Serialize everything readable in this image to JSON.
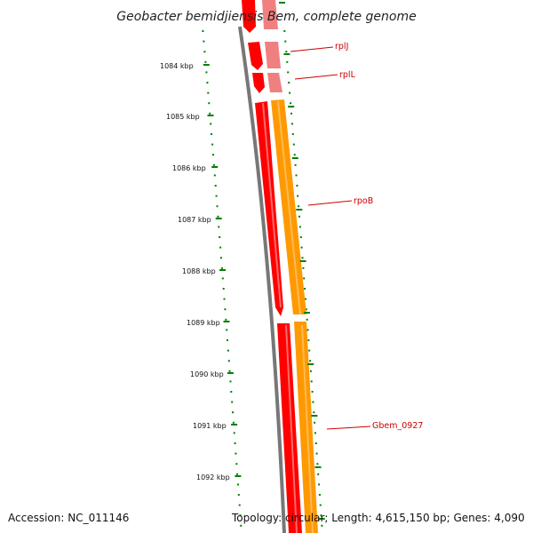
{
  "title": "Geobacter bemidjiensis Bem, complete genome",
  "ticks": [
    {
      "label": "1084 kbp"
    },
    {
      "label": "1085 kbp"
    },
    {
      "label": "1086 kbp"
    },
    {
      "label": "1087 kbp"
    },
    {
      "label": "1088 kbp"
    },
    {
      "label": "1089 kbp"
    },
    {
      "label": "1090 kbp"
    },
    {
      "label": "1091 kbp"
    },
    {
      "label": "1092 kbp"
    }
  ],
  "genes": [
    {
      "name": "rplJ"
    },
    {
      "name": "rplL"
    },
    {
      "name": "rpoB"
    },
    {
      "name": "Gbem_0927"
    }
  ],
  "footer": {
    "accession": "Accession: NC_011146",
    "summary": "Topology: circular; Length: 4,615,150 bp; Genes: 4,090"
  },
  "colors": {
    "cds_red": "#ff0000",
    "cds_red_dark": "#cc0000",
    "cds_light": "#f08080",
    "rna_orange": "#ff9900",
    "backbone": "#777777",
    "dots": "#008000",
    "label": "#cc0000"
  }
}
